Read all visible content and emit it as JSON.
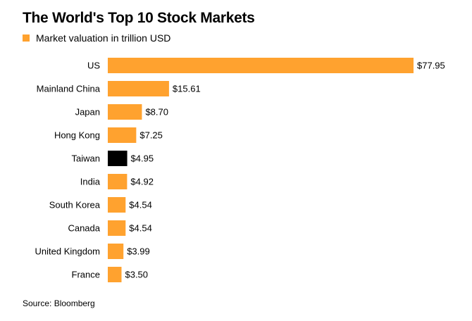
{
  "title": "The World's Top 10 Stock Markets",
  "source": "Source: Bloomberg",
  "colors": {
    "default": "#FFA22F",
    "highlight": "#000000"
  },
  "chart_data": {
    "type": "bar",
    "orientation": "horizontal",
    "title": "The World's Top 10 Stock Markets",
    "legend": "Market valuation in trillion USD",
    "categories": [
      "US",
      "Mainland China",
      "Japan",
      "Hong Kong",
      "Taiwan",
      "India",
      "South Korea",
      "Canada",
      "United Kingdom",
      "France"
    ],
    "values": [
      77.95,
      15.61,
      8.7,
      7.25,
      4.95,
      4.92,
      4.54,
      4.54,
      3.99,
      3.5
    ],
    "value_labels": [
      "$77.95",
      "$15.61",
      "$8.70",
      "$7.25",
      "$4.95",
      "$4.92",
      "$4.54",
      "$4.54",
      "$3.99",
      "$3.50"
    ],
    "highlight_category": "Taiwan",
    "xlim": [
      0,
      77.95
    ],
    "grid": false
  }
}
